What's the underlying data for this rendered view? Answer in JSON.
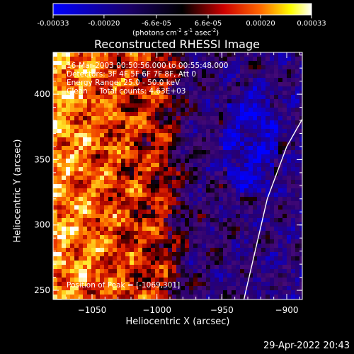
{
  "colorbar": {
    "ticks": [
      "-0.00033",
      "-0.00020",
      "-6.6e-05",
      "6.6e-05",
      "0.00020",
      "0.00033"
    ],
    "units_prefix": "(photons cm",
    "units_sup1": "-2",
    "units_mid1": " s",
    "units_sup2": "-1",
    "units_mid2": " asec",
    "units_sup3": "-2",
    "units_suffix": ")",
    "range": [
      -0.00033,
      0.00033
    ],
    "colors": [
      "#0000ff",
      "#000000",
      "#ff0000",
      "#ffff00",
      "#ffffff"
    ]
  },
  "chart_data": {
    "type": "heatmap",
    "title": "Reconstructed RHESSI Image",
    "xlabel": "Heliocentric X (arcsec)",
    "ylabel": "Heliocentric Y (arcsec)",
    "xlim": [
      -1080,
      -888
    ],
    "ylim": [
      243,
      432
    ],
    "xticks": [
      {
        "v": -1050,
        "label": "−1050"
      },
      {
        "v": -1000,
        "label": "−1000"
      },
      {
        "v": -950,
        "label": "−950"
      },
      {
        "v": -900,
        "label": "−900"
      }
    ],
    "yticks": [
      {
        "v": 250,
        "label": "250"
      },
      {
        "v": 300,
        "label": "300"
      },
      {
        "v": 350,
        "label": "350"
      },
      {
        "v": 400,
        "label": "400"
      }
    ],
    "annotations": [
      "16-Mar-2003 00:50:56.000 to 00:55:48.000",
      "Detectors: 3F 4F 5F 6F 7F 8F, Att 0",
      "Energy Range: 25.0 - 50.0 keV",
      "Clean     Total counts: 4.63E+03"
    ],
    "peak_label": "Position of Peak = [-1069,301]",
    "peak": [
      -1069,
      301
    ],
    "limb_points": [
      [
        -933,
        243
      ],
      [
        -915,
        320
      ],
      [
        -900,
        360
      ],
      [
        -888,
        381
      ]
    ],
    "grid": false
  },
  "footer": {
    "timestamp": "29-Apr-2022 20:43"
  }
}
